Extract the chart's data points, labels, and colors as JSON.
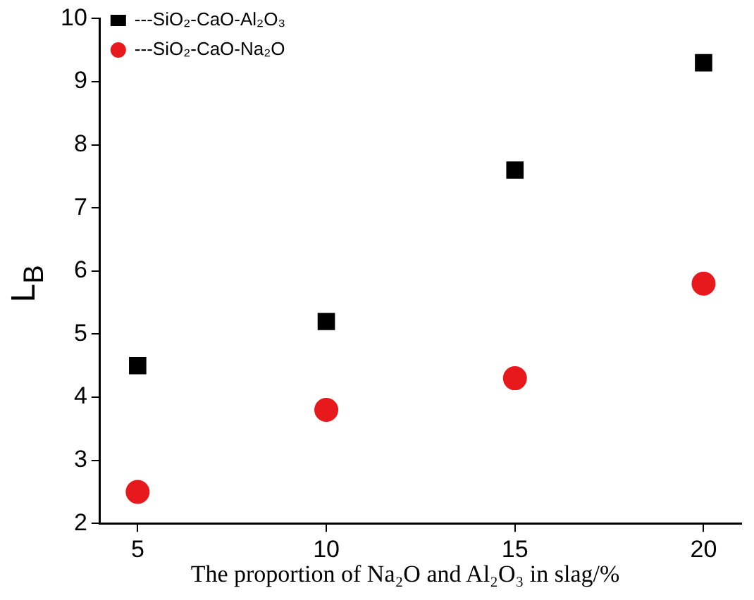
{
  "chart_data": {
    "type": "scatter",
    "xlabel": "The proportion of Na₂O and Al₂O₃ in  slag/%",
    "ylabel": "L$_{B}$",
    "x": [
      5,
      10,
      15,
      20
    ],
    "series": [
      {
        "name": "---SiO₂-CaO-Al₂O₃",
        "color": "#000000",
        "marker": "square",
        "values": [
          4.5,
          5.2,
          7.6,
          9.3
        ]
      },
      {
        "name": "---SiO₂-CaO-Na₂O",
        "color": "#e8191d",
        "marker": "circle",
        "values": [
          2.5,
          3.8,
          4.3,
          5.8
        ]
      }
    ],
    "xlim": [
      4,
      21
    ],
    "xticks": [
      5,
      10,
      15,
      20
    ],
    "ylim": [
      2,
      10
    ],
    "yticks": [
      2,
      3,
      4,
      5,
      6,
      7,
      8,
      9,
      10
    ],
    "grid": false,
    "legend": "top left"
  }
}
